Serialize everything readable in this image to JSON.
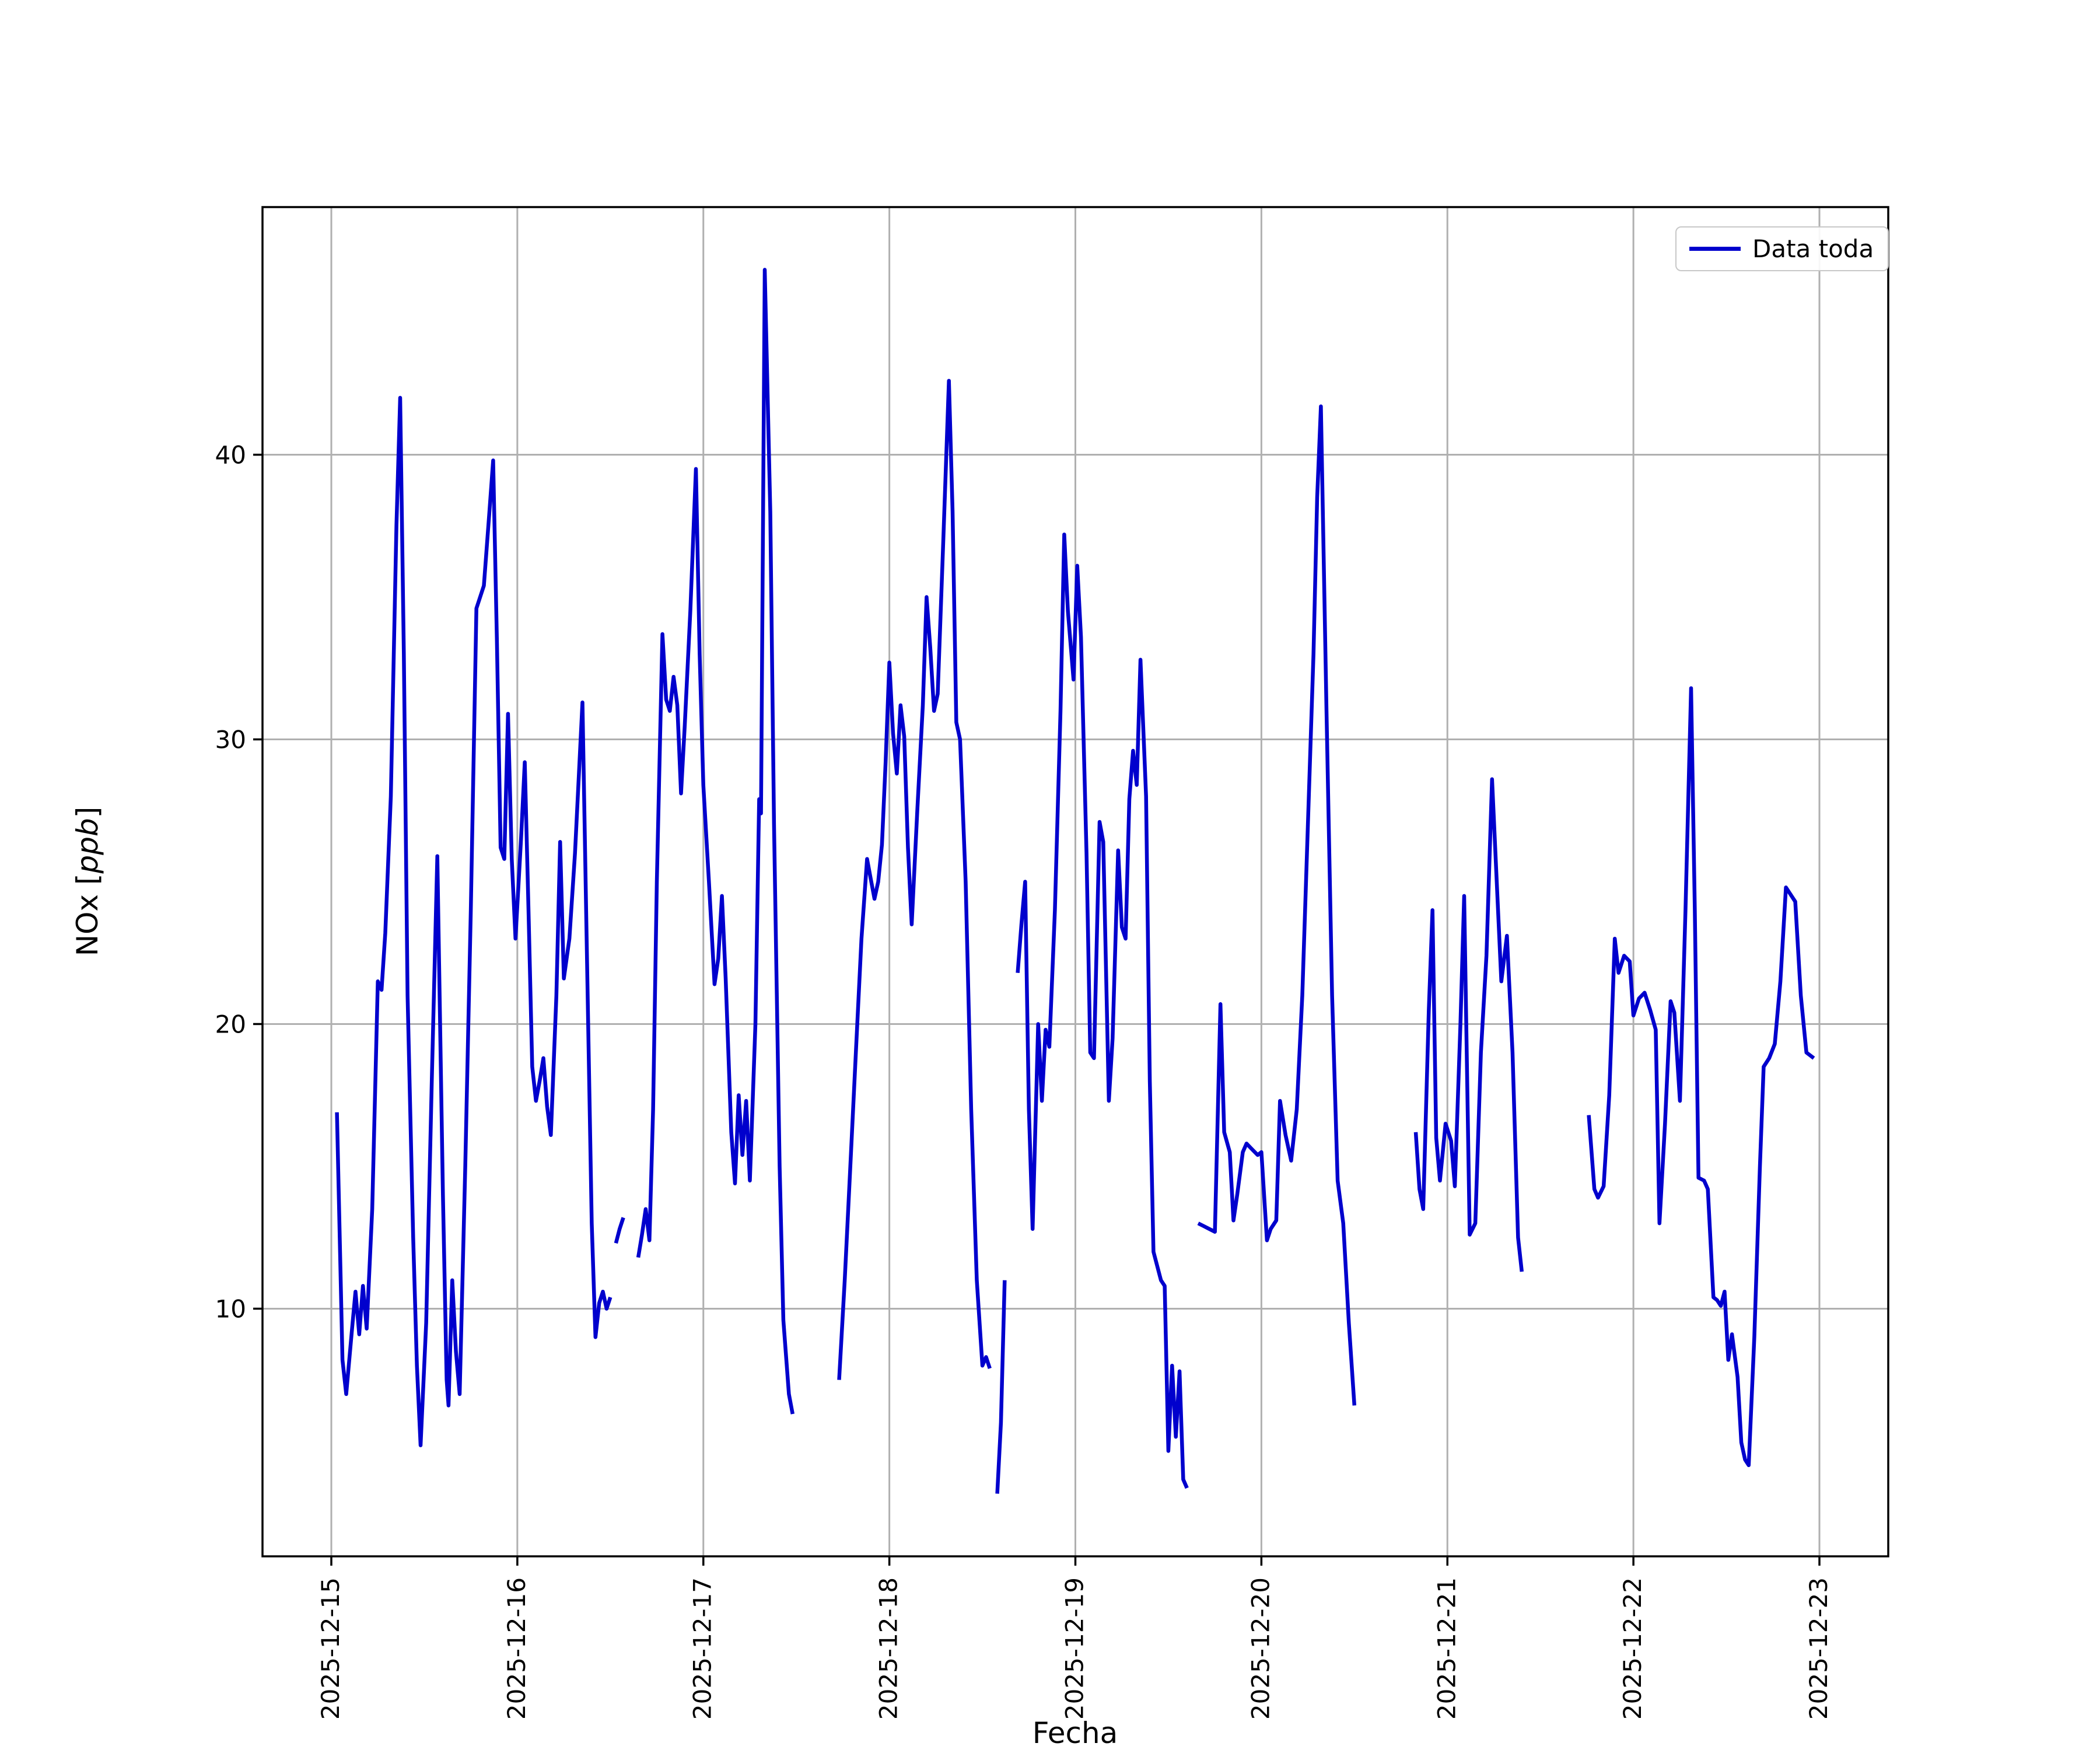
{
  "chart_data": {
    "type": "line",
    "title": "",
    "xlabel": "Fecha",
    "ylabel": "NOx [ppb]",
    "ylabel_parts": {
      "prefix": "NOx [",
      "unit": "ppb",
      "suffix": "]"
    },
    "legend_label": "Data toda",
    "legend_position": "upper right",
    "grid": true,
    "colors": {
      "line": "#0000cd",
      "grid": "#b0b0b0",
      "spine": "#000000",
      "text": "#000000",
      "legend_edge": "#c8c8c8"
    },
    "x_tick_labels": [
      "2025-12-15",
      "2025-12-16",
      "2025-12-17",
      "2025-12-18",
      "2025-12-19",
      "2025-12-20",
      "2025-12-21",
      "2025-12-22",
      "2025-12-23"
    ],
    "x_tick_days": [
      0,
      1,
      2,
      3,
      4,
      5,
      6,
      7,
      8
    ],
    "y_ticks": [
      10,
      20,
      30,
      40
    ],
    "y_tick_labels": [
      "10",
      "20",
      "30",
      "40"
    ],
    "xlim_days": [
      -0.37,
      8.37
    ],
    "ylim": [
      1.3,
      48.7
    ],
    "x_unit": "days since 2025-12-15",
    "y_unit": "ppb",
    "segments": [
      [
        [
          0.03,
          16.9
        ],
        [
          0.06,
          8.2
        ],
        [
          0.08,
          7.0
        ],
        [
          0.11,
          9.2
        ],
        [
          0.13,
          10.6
        ],
        [
          0.15,
          9.1
        ],
        [
          0.17,
          10.8
        ],
        [
          0.19,
          9.3
        ],
        [
          0.22,
          13.5
        ],
        [
          0.25,
          21.5
        ],
        [
          0.27,
          21.2
        ],
        [
          0.29,
          23.2
        ],
        [
          0.32,
          28.0
        ],
        [
          0.35,
          37.5
        ],
        [
          0.37,
          42.0
        ],
        [
          0.39,
          33.0
        ],
        [
          0.41,
          21.0
        ],
        [
          0.44,
          12.5
        ],
        [
          0.46,
          8.0
        ],
        [
          0.48,
          5.2
        ],
        [
          0.51,
          9.5
        ],
        [
          0.54,
          18.0
        ],
        [
          0.57,
          25.9
        ],
        [
          0.6,
          14.0
        ],
        [
          0.62,
          7.5
        ],
        [
          0.63,
          6.6
        ],
        [
          0.65,
          11.0
        ],
        [
          0.67,
          8.5
        ],
        [
          0.69,
          7.0
        ],
        [
          0.72,
          15.0
        ],
        [
          0.75,
          24.0
        ],
        [
          0.78,
          34.6
        ],
        [
          0.8,
          35.0
        ],
        [
          0.82,
          35.4
        ],
        [
          0.85,
          38.0
        ],
        [
          0.87,
          39.8
        ],
        [
          0.89,
          33.5
        ],
        [
          0.91,
          26.2
        ],
        [
          0.93,
          25.8
        ],
        [
          0.95,
          30.9
        ],
        [
          0.97,
          25.8
        ],
        [
          0.99,
          23.0
        ],
        [
          1.02,
          26.5
        ],
        [
          1.04,
          29.2
        ],
        [
          1.06,
          24.0
        ],
        [
          1.08,
          18.5
        ],
        [
          1.1,
          17.3
        ],
        [
          1.12,
          18.0
        ],
        [
          1.14,
          18.8
        ],
        [
          1.16,
          17.1
        ],
        [
          1.18,
          16.1
        ],
        [
          1.21,
          21.0
        ],
        [
          1.23,
          26.4
        ],
        [
          1.25,
          21.6
        ],
        [
          1.28,
          23.0
        ],
        [
          1.31,
          26.0
        ],
        [
          1.35,
          31.3
        ],
        [
          1.37,
          24.0
        ],
        [
          1.4,
          13.0
        ],
        [
          1.42,
          9.0
        ],
        [
          1.44,
          10.2
        ],
        [
          1.46,
          10.6
        ],
        [
          1.48,
          10.0
        ],
        [
          1.5,
          10.4
        ]
      ],
      [
        [
          1.53,
          12.3
        ],
        [
          1.55,
          12.8
        ],
        [
          1.57,
          13.2
        ]
      ],
      [
        [
          1.65,
          11.8
        ],
        [
          1.67,
          12.6
        ],
        [
          1.69,
          13.5
        ],
        [
          1.71,
          12.4
        ],
        [
          1.73,
          17.0
        ],
        [
          1.75,
          25.0
        ],
        [
          1.78,
          33.7
        ],
        [
          1.8,
          31.4
        ],
        [
          1.82,
          31.0
        ],
        [
          1.84,
          32.2
        ],
        [
          1.86,
          31.2
        ],
        [
          1.88,
          28.1
        ],
        [
          1.9,
          30.5
        ],
        [
          1.93,
          34.5
        ],
        [
          1.96,
          39.5
        ],
        [
          1.98,
          33.0
        ],
        [
          2.0,
          28.4
        ],
        [
          2.03,
          25.0
        ],
        [
          2.06,
          21.4
        ],
        [
          2.08,
          22.3
        ],
        [
          2.1,
          24.5
        ],
        [
          2.12,
          21.6
        ],
        [
          2.15,
          16.2
        ],
        [
          2.17,
          14.4
        ],
        [
          2.19,
          17.5
        ],
        [
          2.21,
          15.4
        ],
        [
          2.23,
          17.3
        ],
        [
          2.25,
          14.5
        ],
        [
          2.28,
          20.0
        ],
        [
          2.3,
          27.9
        ],
        [
          2.31,
          27.4
        ],
        [
          2.33,
          46.5
        ],
        [
          2.36,
          38.0
        ],
        [
          2.38,
          27.0
        ],
        [
          2.41,
          15.0
        ],
        [
          2.43,
          9.6
        ],
        [
          2.46,
          7.0
        ],
        [
          2.48,
          6.3
        ]
      ],
      [
        [
          2.73,
          7.5
        ],
        [
          2.76,
          11.0
        ],
        [
          2.79,
          15.0
        ],
        [
          2.82,
          19.0
        ],
        [
          2.85,
          23.0
        ],
        [
          2.88,
          25.8
        ],
        [
          2.9,
          25.1
        ],
        [
          2.92,
          24.4
        ],
        [
          2.94,
          25.0
        ],
        [
          2.96,
          26.3
        ],
        [
          2.98,
          29.2
        ],
        [
          3.0,
          32.7
        ],
        [
          3.02,
          30.2
        ],
        [
          3.04,
          28.8
        ],
        [
          3.06,
          31.2
        ],
        [
          3.08,
          30.1
        ],
        [
          3.1,
          26.2
        ],
        [
          3.12,
          23.5
        ],
        [
          3.15,
          27.5
        ],
        [
          3.18,
          31.2
        ],
        [
          3.2,
          35.0
        ],
        [
          3.22,
          33.2
        ],
        [
          3.24,
          31.0
        ],
        [
          3.26,
          31.6
        ],
        [
          3.29,
          37.0
        ],
        [
          3.32,
          42.6
        ],
        [
          3.34,
          38.0
        ],
        [
          3.36,
          30.6
        ],
        [
          3.38,
          30.0
        ],
        [
          3.41,
          25.0
        ],
        [
          3.44,
          17.0
        ],
        [
          3.47,
          11.0
        ],
        [
          3.5,
          8.0
        ],
        [
          3.52,
          8.3
        ],
        [
          3.54,
          7.9
        ]
      ],
      [
        [
          3.58,
          3.5
        ],
        [
          3.6,
          6.0
        ],
        [
          3.62,
          11.0
        ]
      ],
      [
        [
          3.69,
          21.8
        ],
        [
          3.71,
          23.5
        ],
        [
          3.73,
          25.0
        ],
        [
          3.75,
          17.0
        ],
        [
          3.77,
          12.8
        ],
        [
          3.8,
          20.0
        ],
        [
          3.82,
          17.3
        ],
        [
          3.84,
          19.8
        ],
        [
          3.86,
          19.2
        ],
        [
          3.89,
          24.0
        ],
        [
          3.92,
          31.0
        ],
        [
          3.94,
          37.2
        ],
        [
          3.96,
          34.5
        ],
        [
          3.99,
          32.1
        ],
        [
          4.01,
          36.1
        ],
        [
          4.03,
          33.6
        ],
        [
          4.06,
          26.0
        ],
        [
          4.08,
          19.0
        ],
        [
          4.1,
          18.8
        ],
        [
          4.13,
          27.1
        ],
        [
          4.15,
          26.4
        ],
        [
          4.18,
          17.3
        ],
        [
          4.2,
          19.5
        ],
        [
          4.23,
          26.1
        ],
        [
          4.25,
          23.4
        ],
        [
          4.27,
          23.0
        ],
        [
          4.29,
          27.9
        ],
        [
          4.31,
          29.6
        ],
        [
          4.33,
          28.4
        ],
        [
          4.35,
          32.8
        ],
        [
          4.38,
          28.0
        ],
        [
          4.4,
          18.0
        ],
        [
          4.42,
          12.0
        ],
        [
          4.44,
          11.5
        ],
        [
          4.46,
          11.0
        ],
        [
          4.48,
          10.8
        ],
        [
          4.5,
          5.0
        ],
        [
          4.52,
          8.0
        ],
        [
          4.54,
          5.5
        ],
        [
          4.56,
          7.8
        ],
        [
          4.58,
          4.0
        ],
        [
          4.6,
          3.7
        ]
      ],
      [
        [
          4.66,
          13.0
        ],
        [
          4.69,
          12.9
        ],
        [
          4.72,
          12.8
        ],
        [
          4.75,
          12.7
        ],
        [
          4.78,
          20.7
        ],
        [
          4.8,
          16.2
        ],
        [
          4.83,
          15.5
        ],
        [
          4.85,
          13.1
        ],
        [
          4.87,
          14.0
        ],
        [
          4.9,
          15.5
        ],
        [
          4.92,
          15.8
        ],
        [
          4.95,
          15.6
        ],
        [
          4.98,
          15.4
        ],
        [
          5.0,
          15.5
        ],
        [
          5.03,
          12.4
        ],
        [
          5.05,
          12.8
        ],
        [
          5.08,
          13.1
        ],
        [
          5.1,
          17.3
        ],
        [
          5.13,
          16.1
        ],
        [
          5.16,
          15.2
        ],
        [
          5.19,
          17.0
        ],
        [
          5.22,
          21.0
        ],
        [
          5.25,
          27.0
        ],
        [
          5.28,
          33.0
        ],
        [
          5.3,
          38.5
        ],
        [
          5.32,
          41.7
        ],
        [
          5.35,
          31.0
        ],
        [
          5.38,
          21.0
        ],
        [
          5.41,
          14.5
        ],
        [
          5.44,
          13.0
        ],
        [
          5.47,
          9.5
        ],
        [
          5.5,
          6.6
        ]
      ],
      [
        [
          5.83,
          16.2
        ],
        [
          5.85,
          14.2
        ],
        [
          5.87,
          13.5
        ],
        [
          5.9,
          20.5
        ],
        [
          5.92,
          24.0
        ],
        [
          5.94,
          16.0
        ],
        [
          5.96,
          14.5
        ],
        [
          5.99,
          16.5
        ],
        [
          6.02,
          15.9
        ],
        [
          6.04,
          14.3
        ],
        [
          6.07,
          20.0
        ],
        [
          6.09,
          24.5
        ],
        [
          6.12,
          12.6
        ],
        [
          6.15,
          13.0
        ],
        [
          6.18,
          19.0
        ],
        [
          6.21,
          22.4
        ],
        [
          6.24,
          28.6
        ],
        [
          6.27,
          24.3
        ],
        [
          6.29,
          21.5
        ],
        [
          6.32,
          23.1
        ],
        [
          6.35,
          19.0
        ],
        [
          6.38,
          12.5
        ],
        [
          6.4,
          11.3
        ]
      ],
      [
        [
          6.76,
          16.8
        ],
        [
          6.79,
          14.2
        ],
        [
          6.81,
          13.9
        ],
        [
          6.84,
          14.3
        ],
        [
          6.87,
          17.5
        ],
        [
          6.9,
          23.0
        ],
        [
          6.92,
          21.8
        ],
        [
          6.95,
          22.4
        ],
        [
          6.98,
          22.2
        ],
        [
          7.0,
          20.3
        ],
        [
          7.03,
          20.9
        ],
        [
          7.06,
          21.1
        ],
        [
          7.09,
          20.5
        ],
        [
          7.12,
          19.8
        ],
        [
          7.14,
          13.0
        ],
        [
          7.17,
          16.5
        ],
        [
          7.2,
          20.8
        ],
        [
          7.22,
          20.4
        ],
        [
          7.25,
          17.3
        ],
        [
          7.28,
          24.0
        ],
        [
          7.31,
          31.8
        ],
        [
          7.33,
          24.0
        ],
        [
          7.35,
          14.6
        ],
        [
          7.38,
          14.5
        ],
        [
          7.4,
          14.2
        ],
        [
          7.43,
          10.4
        ],
        [
          7.45,
          10.3
        ],
        [
          7.47,
          10.1
        ],
        [
          7.49,
          10.6
        ],
        [
          7.51,
          8.2
        ],
        [
          7.53,
          9.1
        ],
        [
          7.56,
          7.6
        ],
        [
          7.58,
          5.3
        ],
        [
          7.6,
          4.7
        ],
        [
          7.62,
          4.5
        ],
        [
          7.65,
          9.0
        ],
        [
          7.68,
          15.0
        ],
        [
          7.7,
          18.5
        ],
        [
          7.73,
          18.8
        ],
        [
          7.76,
          19.3
        ],
        [
          7.79,
          21.5
        ],
        [
          7.82,
          24.8
        ],
        [
          7.84,
          24.6
        ],
        [
          7.87,
          24.3
        ],
        [
          7.9,
          21.0
        ],
        [
          7.93,
          19.0
        ],
        [
          7.95,
          18.9
        ],
        [
          7.97,
          18.8
        ]
      ]
    ]
  }
}
